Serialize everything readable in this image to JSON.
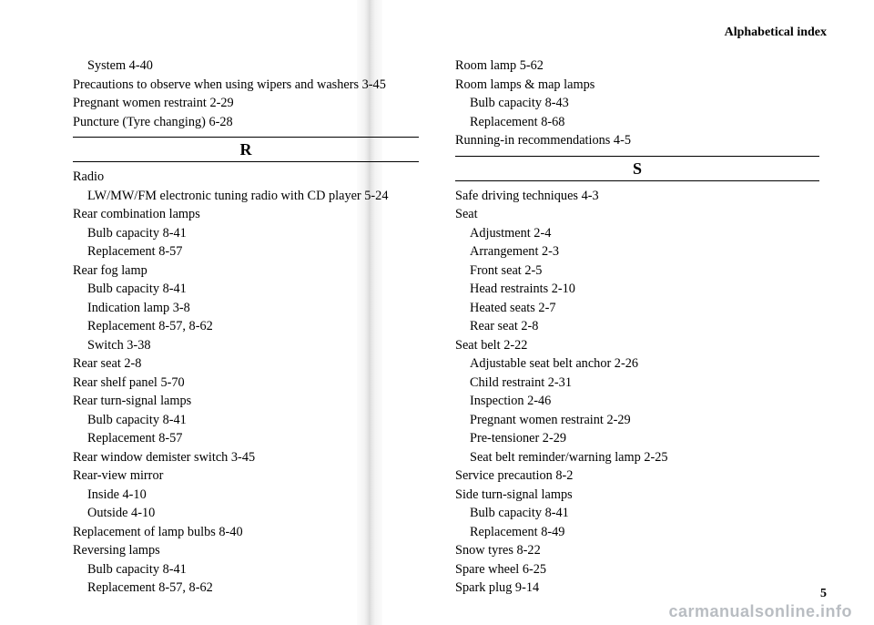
{
  "running_head": "Alphabetical index",
  "page_number": "5",
  "watermark": "carmanualsonline.info",
  "left": {
    "pre": [
      {
        "t": "System  4-40",
        "sub": true
      },
      {
        "t": "Precautions to observe when using wipers and washers  3-45"
      },
      {
        "t": "Pregnant women restraint  2-29"
      },
      {
        "t": "Puncture (Tyre changing)  6-28"
      }
    ],
    "section_letter": "R",
    "entries": [
      {
        "t": "Radio"
      },
      {
        "t": "LW/MW/FM electronic tuning radio with CD player  5-24",
        "sub": true
      },
      {
        "t": "Rear combination lamps"
      },
      {
        "t": "Bulb capacity  8-41",
        "sub": true
      },
      {
        "t": "Replacement  8-57",
        "sub": true
      },
      {
        "t": "Rear fog lamp"
      },
      {
        "t": "Bulb capacity  8-41",
        "sub": true
      },
      {
        "t": "Indication lamp  3-8",
        "sub": true
      },
      {
        "t": "Replacement  8-57, 8-62",
        "sub": true
      },
      {
        "t": "Switch  3-38",
        "sub": true
      },
      {
        "t": "Rear seat  2-8"
      },
      {
        "t": "Rear shelf panel  5-70"
      },
      {
        "t": "Rear turn-signal lamps"
      },
      {
        "t": "Bulb capacity  8-41",
        "sub": true
      },
      {
        "t": "Replacement  8-57",
        "sub": true
      },
      {
        "t": "Rear window demister switch  3-45"
      },
      {
        "t": "Rear-view mirror"
      },
      {
        "t": "Inside  4-10",
        "sub": true
      },
      {
        "t": "Outside  4-10",
        "sub": true
      },
      {
        "t": "Replacement of lamp bulbs  8-40"
      },
      {
        "t": "Reversing lamps"
      },
      {
        "t": "Bulb capacity  8-41",
        "sub": true
      },
      {
        "t": "Replacement  8-57, 8-62",
        "sub": true
      }
    ]
  },
  "right": {
    "pre": [
      {
        "t": "Room lamp  5-62"
      },
      {
        "t": "Room lamps & map lamps"
      },
      {
        "t": "Bulb capacity  8-43",
        "sub": true
      },
      {
        "t": "Replacement  8-68",
        "sub": true
      },
      {
        "t": "Running-in recommendations  4-5"
      }
    ],
    "section_letter": "S",
    "entries": [
      {
        "t": "Safe driving techniques  4-3"
      },
      {
        "t": "Seat"
      },
      {
        "t": "Adjustment  2-4",
        "sub": true
      },
      {
        "t": "Arrangement  2-3",
        "sub": true
      },
      {
        "t": "Front seat  2-5",
        "sub": true
      },
      {
        "t": "Head restraints  2-10",
        "sub": true
      },
      {
        "t": "Heated seats  2-7",
        "sub": true
      },
      {
        "t": "Rear seat  2-8",
        "sub": true
      },
      {
        "t": "Seat belt  2-22"
      },
      {
        "t": "Adjustable seat belt anchor  2-26",
        "sub": true
      },
      {
        "t": "Child restraint  2-31",
        "sub": true
      },
      {
        "t": "Inspection  2-46",
        "sub": true
      },
      {
        "t": "Pregnant women restraint  2-29",
        "sub": true
      },
      {
        "t": "Pre-tensioner  2-29",
        "sub": true
      },
      {
        "t": "Seat belt reminder/warning lamp  2-25",
        "sub": true
      },
      {
        "t": "Service precaution  8-2"
      },
      {
        "t": "Side turn-signal lamps"
      },
      {
        "t": "Bulb capacity  8-41",
        "sub": true
      },
      {
        "t": "Replacement  8-49",
        "sub": true
      },
      {
        "t": "Snow tyres  8-22"
      },
      {
        "t": "Spare wheel  6-25"
      },
      {
        "t": "Spark plug  9-14"
      }
    ]
  }
}
